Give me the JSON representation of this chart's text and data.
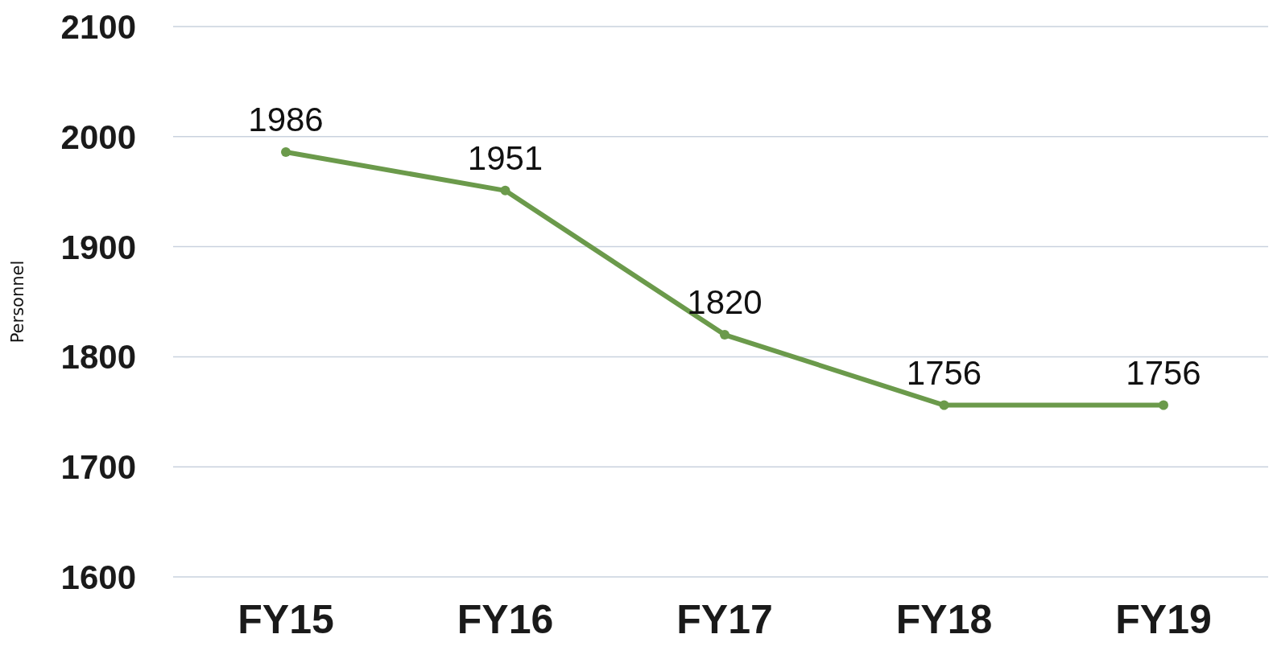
{
  "chart_data": {
    "type": "line",
    "ylabel": "Personnel",
    "categories": [
      "FY15",
      "FY16",
      "FY17",
      "FY18",
      "FY19"
    ],
    "series": [
      {
        "color": "#6b9a4b",
        "values": [
          1986,
          1951,
          1820,
          1756,
          1756
        ]
      }
    ],
    "ylim": [
      1600,
      2100
    ],
    "yticks": [
      1600,
      1700,
      1800,
      1900,
      2000,
      2100
    ],
    "grid": "y",
    "legend": false,
    "marker": "circle",
    "line_style": "solid",
    "data_labels": true
  }
}
